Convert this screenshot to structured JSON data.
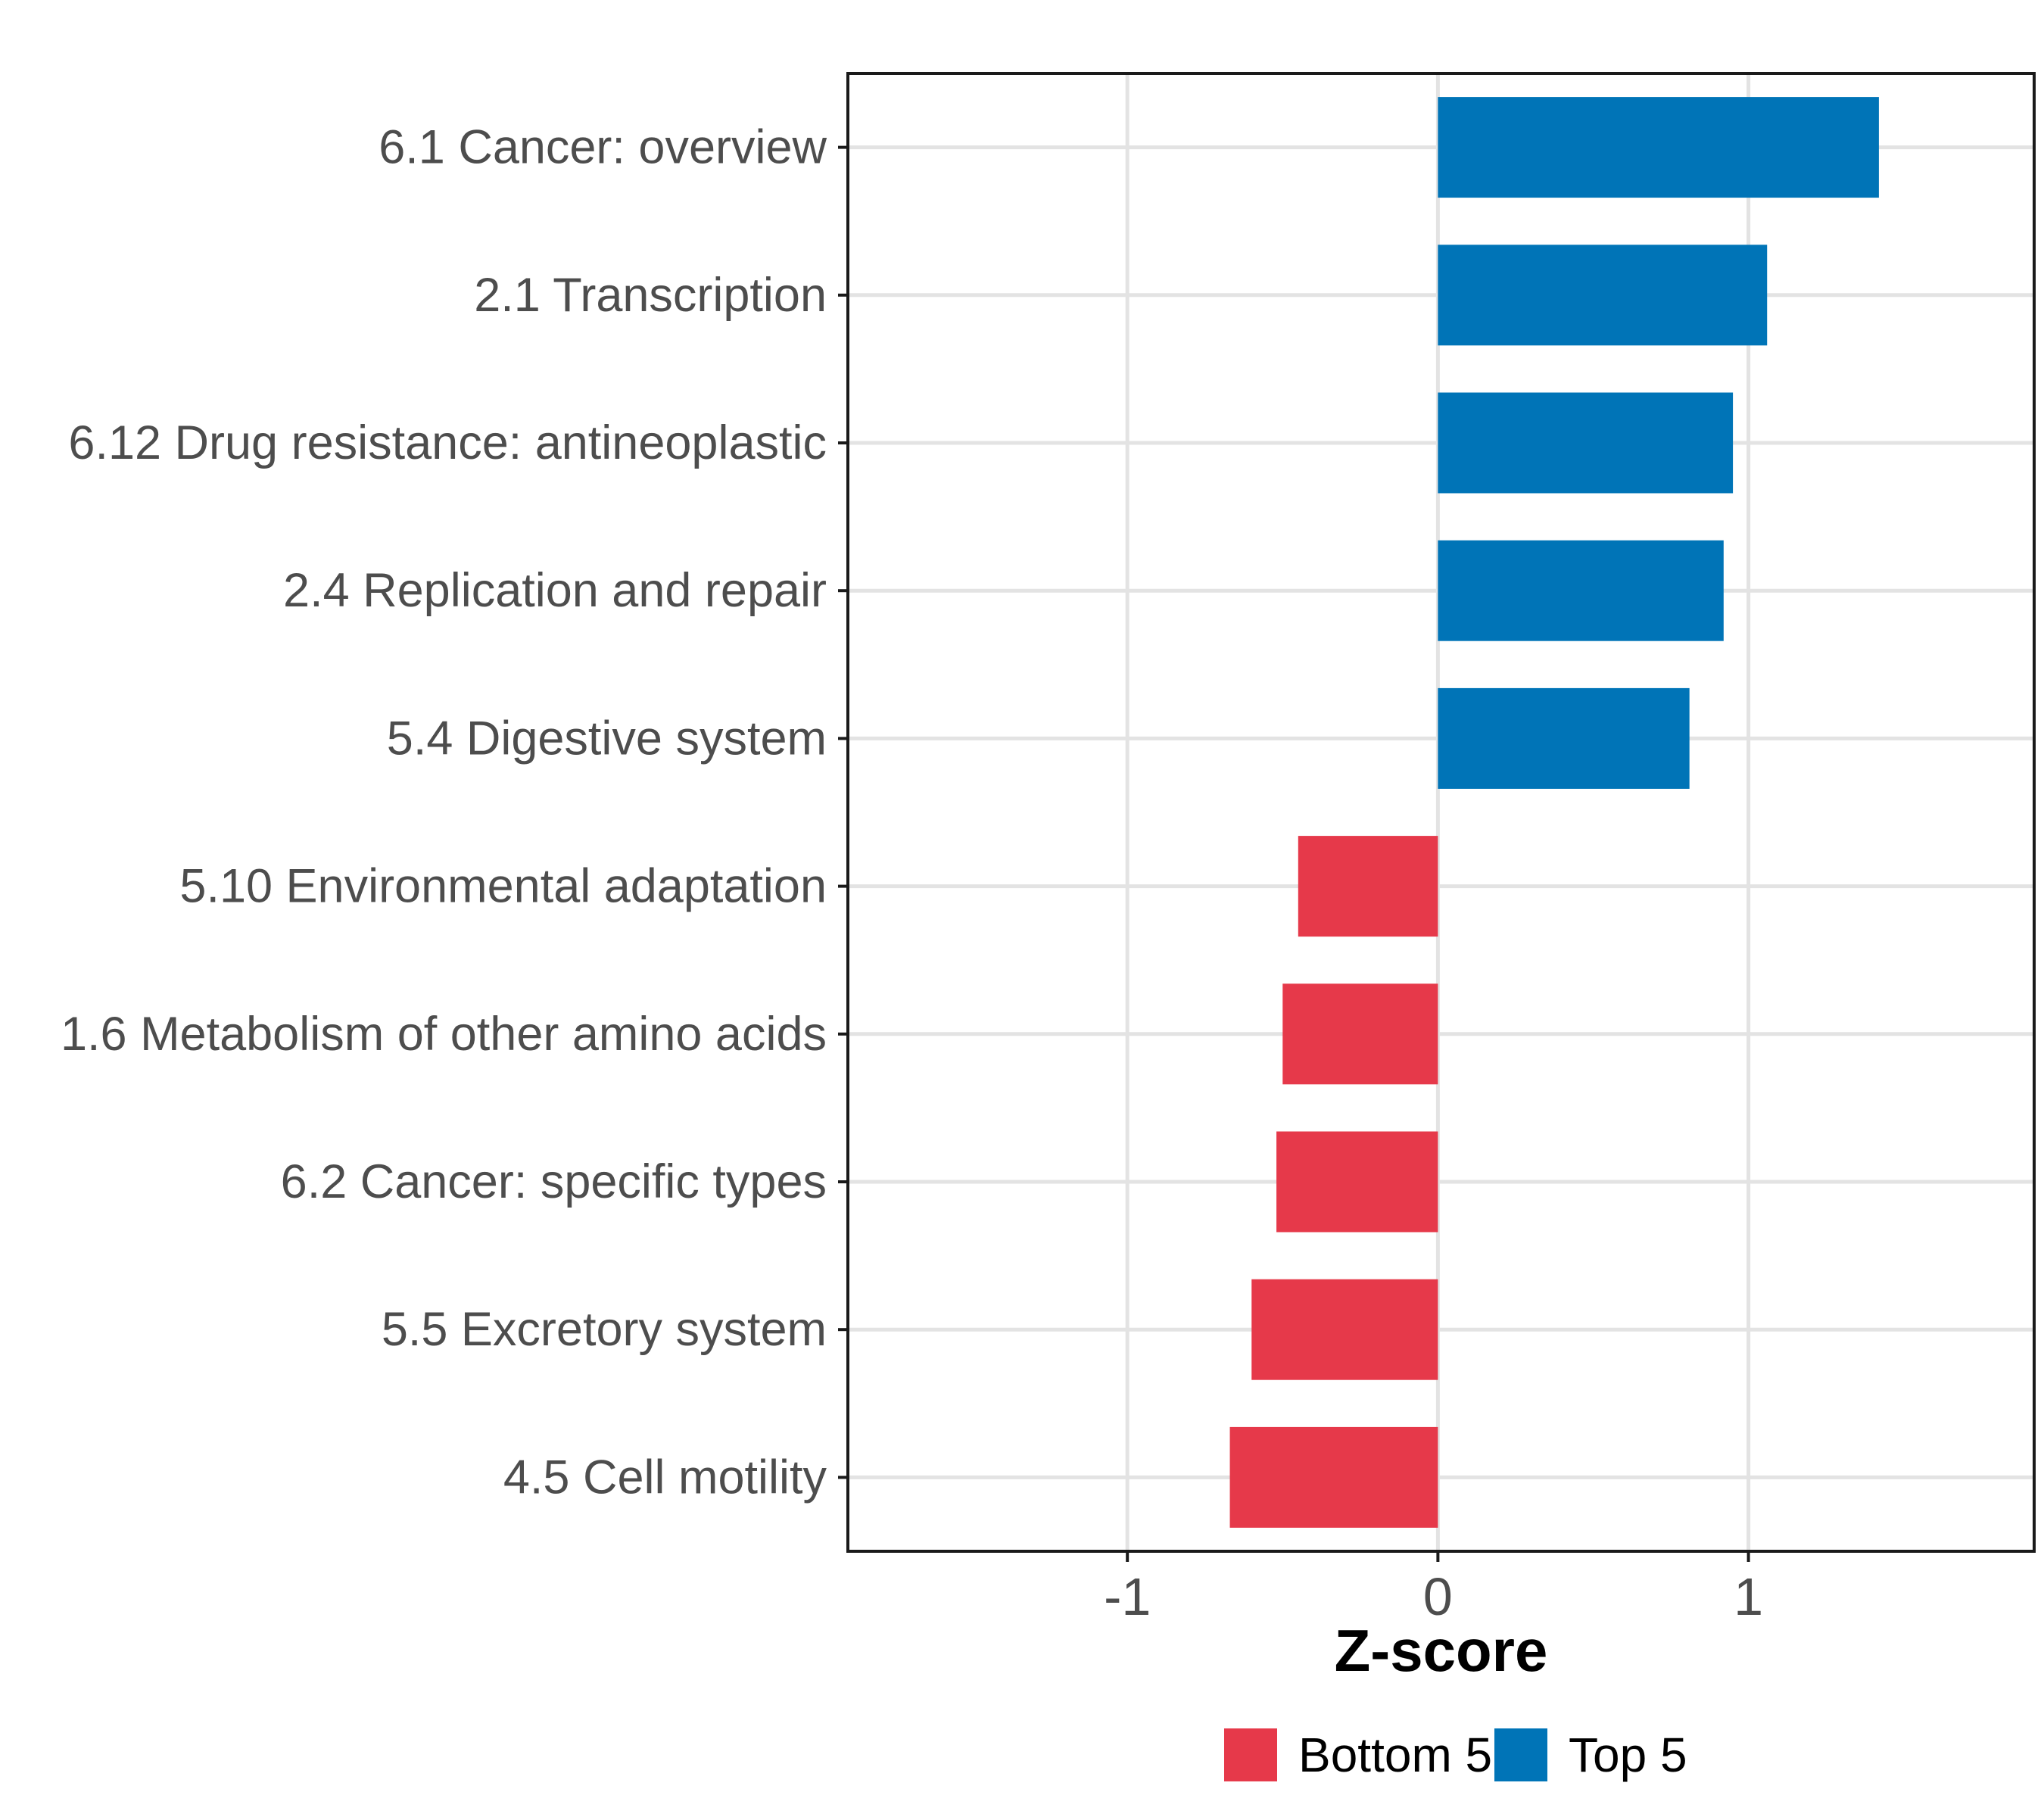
{
  "figure": {
    "background": "#FFFFFF"
  },
  "chart_data": {
    "type": "bar",
    "orientation": "horizontal",
    "title": "",
    "xlabel": "Z-score",
    "ylabel": "",
    "categories": [
      "6.1 Cancer: overview",
      "2.1 Transcription",
      "6.12 Drug resistance: antineoplastic",
      "2.4 Replication and repair",
      "5.4 Digestive system",
      "5.10 Environmental adaptation",
      "1.6 Metabolism of other amino acids",
      "6.2 Cancer: specific types",
      "5.5 Excretory system",
      "4.5 Cell motility"
    ],
    "values": [
      1.42,
      1.06,
      0.95,
      0.92,
      0.81,
      -0.45,
      -0.5,
      -0.52,
      -0.6,
      -0.67
    ],
    "series_membership": [
      "Top 5",
      "Top 5",
      "Top 5",
      "Top 5",
      "Top 5",
      "Bottom 5",
      "Bottom 5",
      "Bottom 5",
      "Bottom 5",
      "Bottom 5"
    ],
    "x_ticks": [
      -1,
      0,
      1
    ],
    "x_tick_labels": [
      "-1",
      "0",
      "1"
    ],
    "xlim": [
      -1.9,
      1.92
    ],
    "grid": {
      "show": true,
      "color": "#E3E3E3",
      "vertical_at": [
        -1,
        0,
        1
      ],
      "horizontal_at_category_centers": true
    },
    "panel": {
      "background": "#FFFFFF",
      "border_color": "#1A1A1A"
    },
    "axis_style": {
      "tick_color": "#1A1A1A",
      "tick_label_color": "#4D4D4D",
      "title_color": "#000000"
    },
    "bar_colors": {
      "positive": "#0074B7",
      "negative": "#E6394A"
    },
    "legend": {
      "position": "bottom",
      "entries": [
        {
          "label": "Bottom 5",
          "color": "#E6394A"
        },
        {
          "label": "Top 5",
          "color": "#0074B7"
        }
      ]
    }
  }
}
